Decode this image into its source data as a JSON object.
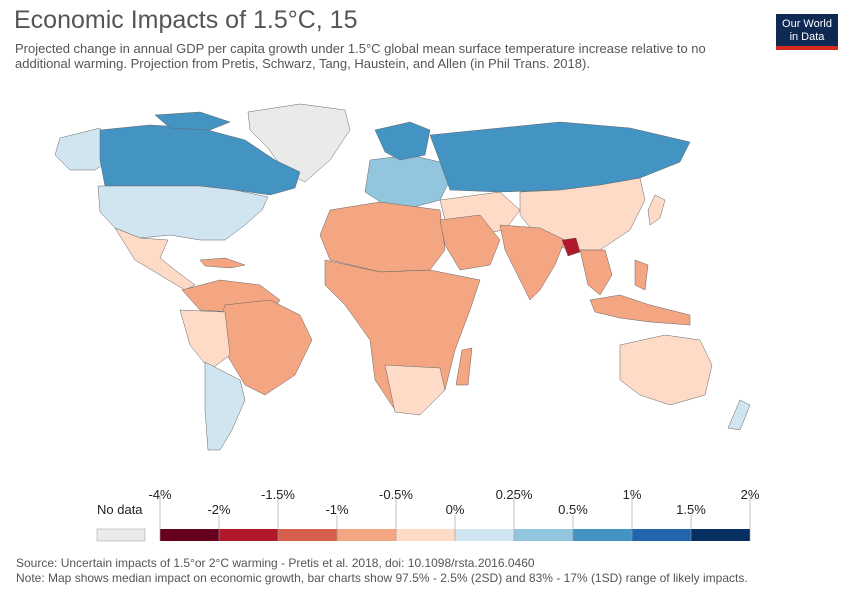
{
  "title": "Economic Impacts of 1.5°C, 15",
  "subtitle": "Projected change in annual GDP per capita growth under 1.5°C global mean surface temperature increase relative to no additional warming. Projection from Pretis, Schwarz, Tang, Haustein, and Allen (in Phil Trans. 2018).",
  "logo": {
    "line1": "Our World",
    "line2": "in Data"
  },
  "legend": {
    "no_data_label": "No data",
    "no_data_color": "#eaeaea",
    "bins": [
      {
        "color": "#67001f"
      },
      {
        "color": "#b2182b"
      },
      {
        "color": "#d6604d"
      },
      {
        "color": "#f4a582"
      },
      {
        "color": "#fddbc7"
      },
      {
        "color": "#d1e5f0"
      },
      {
        "color": "#92c5de"
      },
      {
        "color": "#4393c3"
      },
      {
        "color": "#2166ac"
      },
      {
        "color": "#053061"
      }
    ],
    "ticks_top": [
      "-4%",
      "-1.5%",
      "-0.5%",
      "0.25%",
      "1%",
      "2%"
    ],
    "ticks_bottom": [
      "-2%",
      "-1%",
      "0%",
      "0.5%",
      "1.5%"
    ]
  },
  "regions": [
    {
      "name": "Canada",
      "value": "1%",
      "color": "#4393c3"
    },
    {
      "name": "Russia",
      "value": "1%",
      "color": "#4393c3"
    },
    {
      "name": "Nordic countries",
      "value": "1%",
      "color": "#4393c3"
    },
    {
      "name": "Greenland",
      "value": "No data",
      "color": "#eaeaea"
    },
    {
      "name": "United States",
      "value": "0.25%",
      "color": "#d1e5f0"
    },
    {
      "name": "Europe",
      "value": "0.5%",
      "color": "#92c5de"
    },
    {
      "name": "Chile / Argentina",
      "value": "0.25%",
      "color": "#d1e5f0"
    },
    {
      "name": "Brazil",
      "value": "-0.5%",
      "color": "#f4a582"
    },
    {
      "name": "Africa",
      "value": "-0.5%",
      "color": "#f4a582"
    },
    {
      "name": "India",
      "value": "-0.5%",
      "color": "#f4a582"
    },
    {
      "name": "Bangladesh",
      "value": "-2%",
      "color": "#b2182b"
    },
    {
      "name": "China",
      "value": "0%",
      "color": "#fddbc7"
    },
    {
      "name": "Australia",
      "value": "0%",
      "color": "#fddbc7"
    },
    {
      "name": "Indonesia",
      "value": "-0.5%",
      "color": "#f4a582"
    }
  ],
  "footer": {
    "source": "Source: Uncertain impacts of 1.5°or 2°C warming - Pretis et al. 2018, doi: 10.1098/rsta.2016.0460",
    "note": "Note: Map shows median impact on economic growth, bar charts show 97.5% - 2.5% (2SD) and 83% - 17% (1SD) range of likely impacts."
  }
}
